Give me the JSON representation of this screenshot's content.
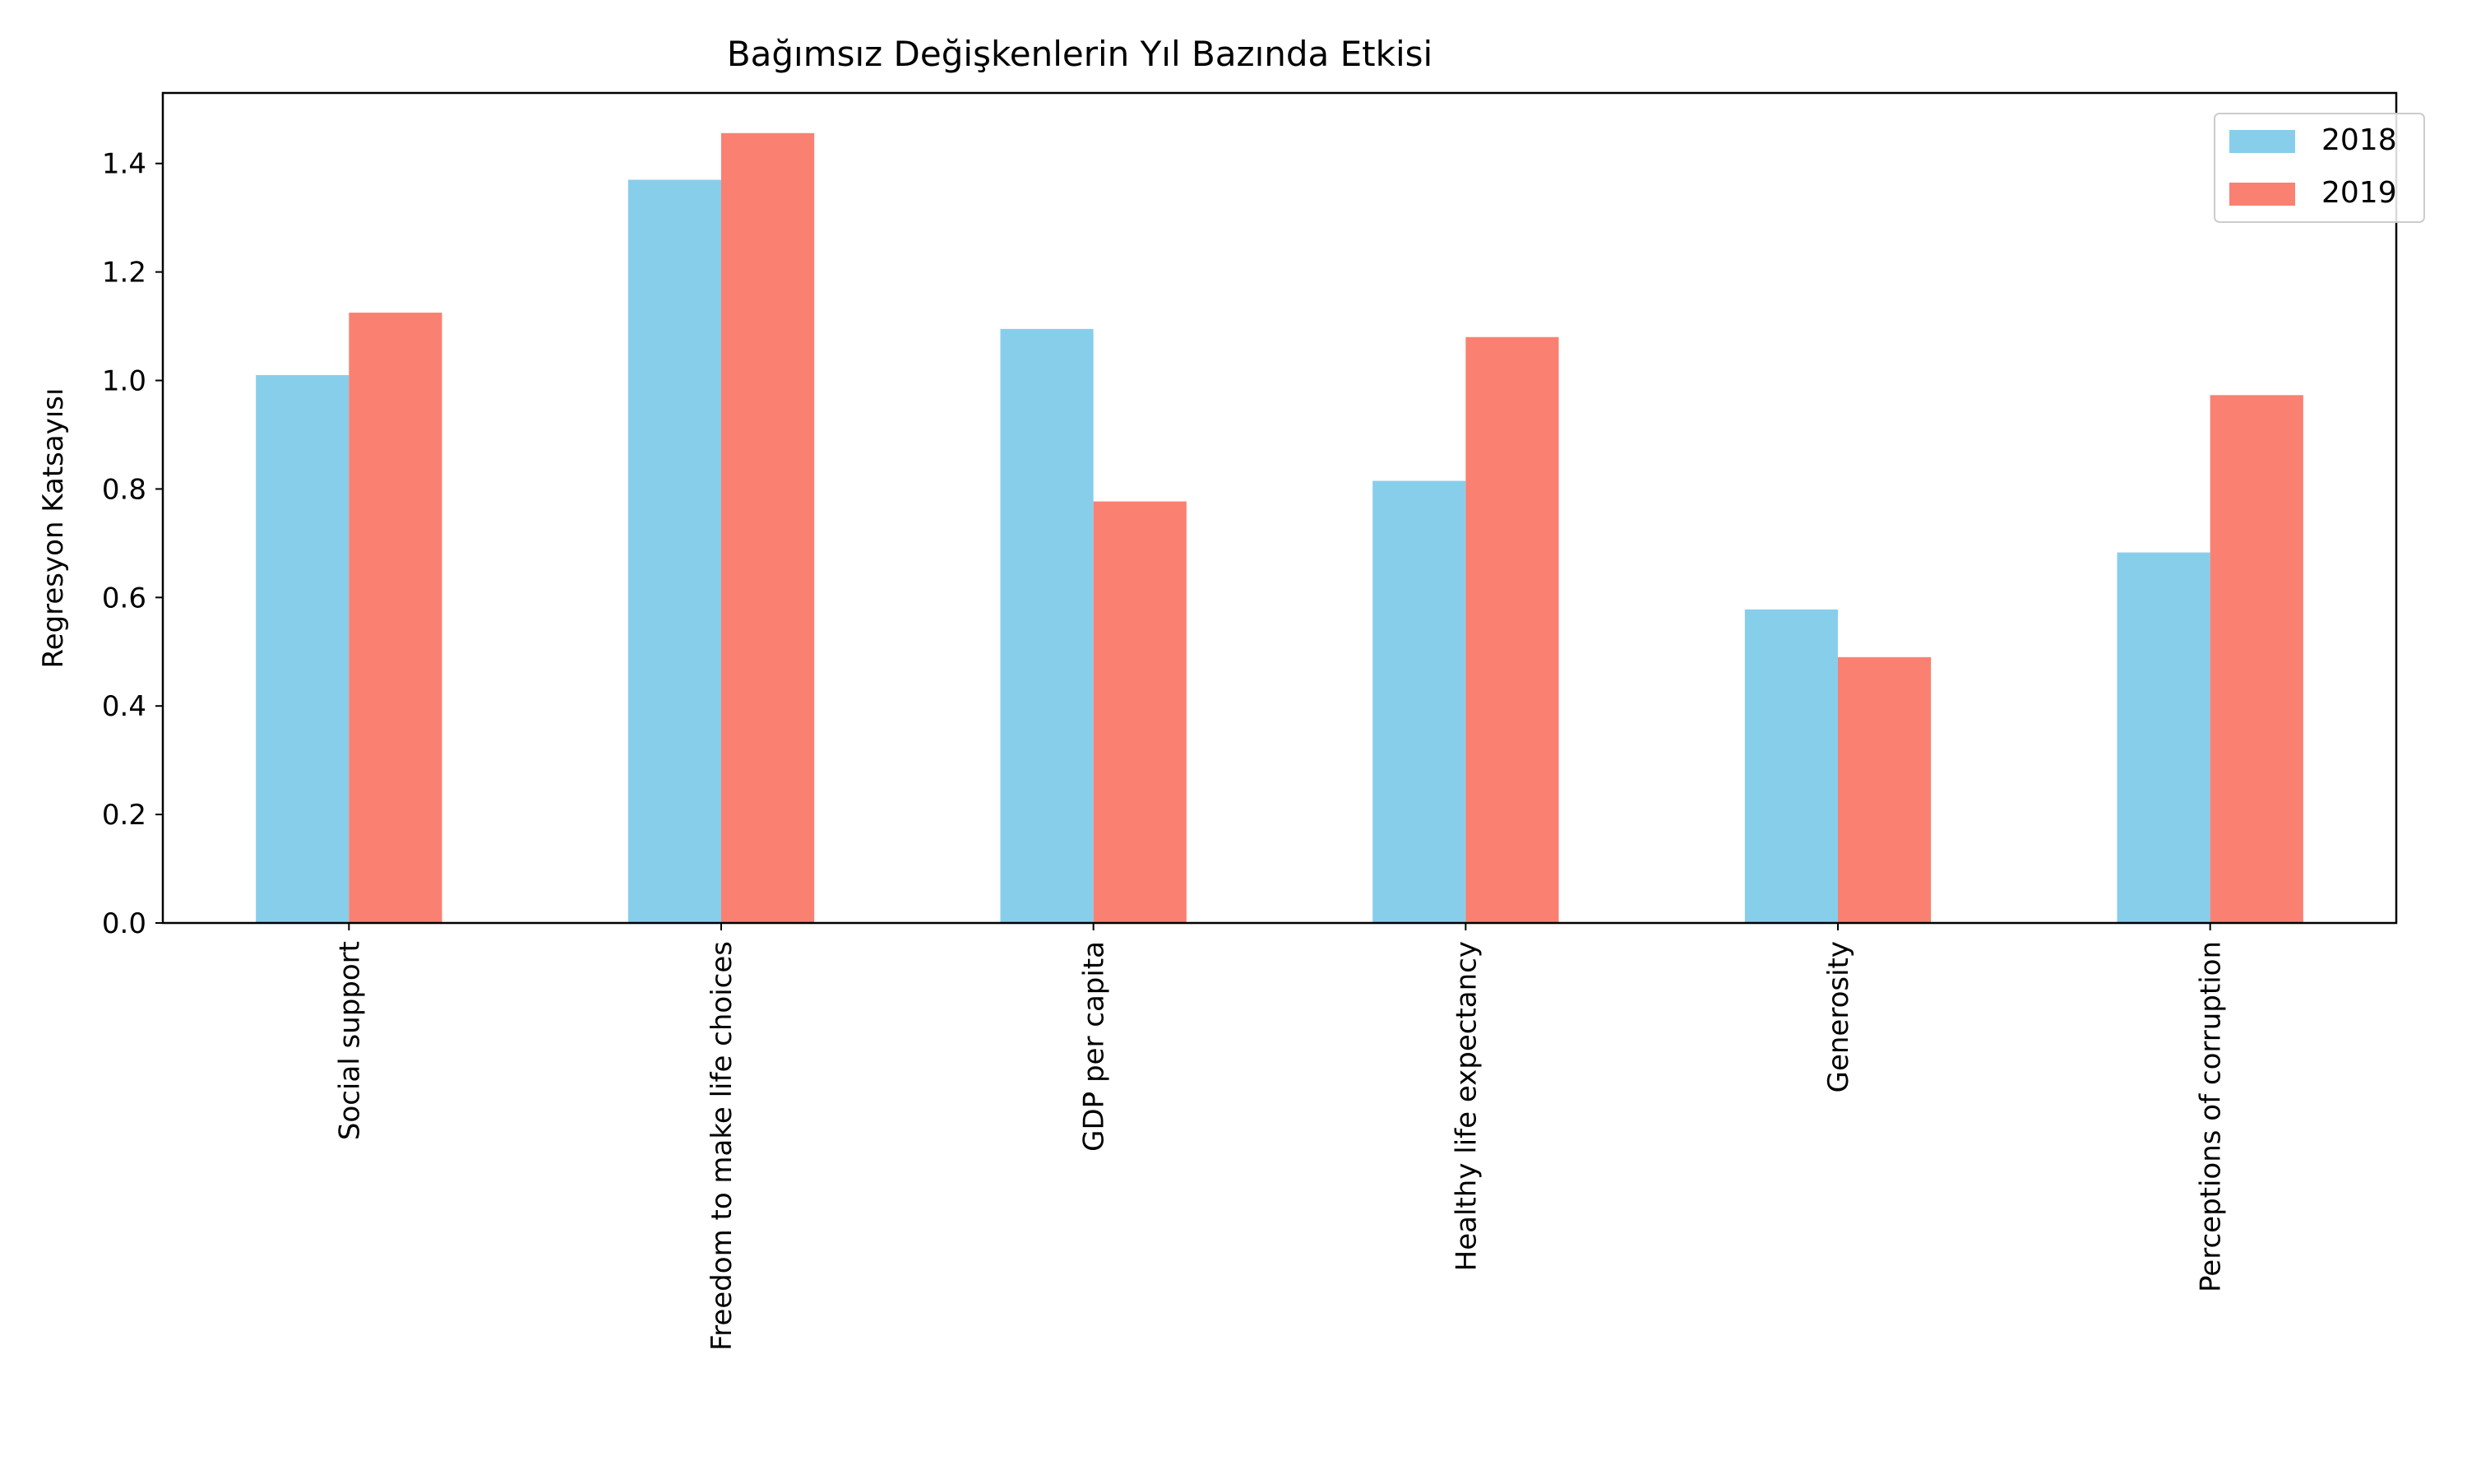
{
  "chart_data": {
    "type": "bar",
    "title": "Bağımsız Değişkenlerin Yıl Bazında Etkisi",
    "xlabel": "",
    "ylabel": "Regresyon Katsayısı",
    "ylim": [
      0,
      1.53
    ],
    "yticks": [
      0.0,
      0.2,
      0.4,
      0.6,
      0.8,
      1.0,
      1.2,
      1.4
    ],
    "ytick_labels": [
      "0.0",
      "0.2",
      "0.4",
      "0.6",
      "0.8",
      "1.0",
      "1.2",
      "1.4"
    ],
    "categories": [
      "Social support",
      "Freedom to make life choices",
      "GDP per capita",
      "Healthy life expectancy",
      "Generosity",
      "Perceptions of corruption"
    ],
    "series": [
      {
        "name": "2018",
        "color": "#87ceeb",
        "values": [
          1.01,
          1.37,
          1.095,
          0.815,
          0.578,
          0.683
        ]
      },
      {
        "name": "2019",
        "color": "#fa8072",
        "values": [
          1.125,
          1.456,
          0.777,
          1.08,
          0.49,
          0.973
        ]
      }
    ],
    "grid": false,
    "legend_position": "top-right"
  }
}
